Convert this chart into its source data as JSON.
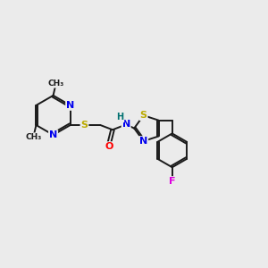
{
  "background_color": "#ebebeb",
  "bond_color": "#1a1a1a",
  "atom_colors": {
    "N": "#0000ee",
    "S": "#bbaa00",
    "O": "#ff0000",
    "F": "#dd00dd",
    "H": "#007070",
    "C": "#1a1a1a"
  },
  "fig_size": [
    3.0,
    3.0
  ],
  "dpi": 100,
  "xlim": [
    -4.5,
    9.5
  ],
  "ylim": [
    -5.0,
    4.0
  ]
}
